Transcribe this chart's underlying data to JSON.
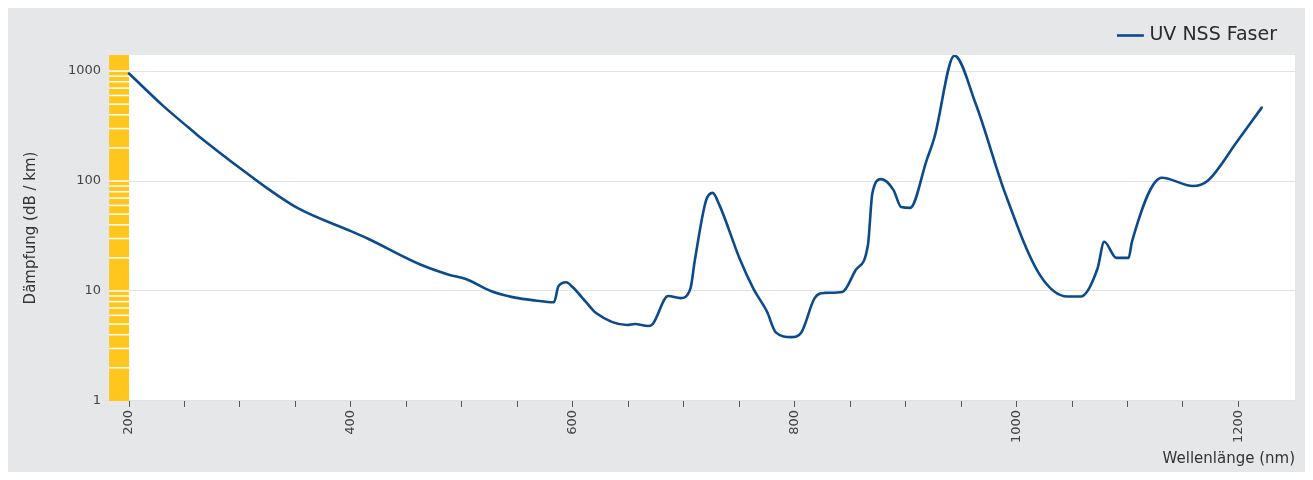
{
  "chart_data": {
    "type": "line",
    "xlabel": "Wellenlänge (nm)",
    "ylabel": "Dämpfung (dB / km)",
    "series": [
      {
        "name": "UV NSS Faser",
        "color": "#0b4a8b",
        "x": [
          200,
          231,
          253,
          262,
          305,
          326,
          353,
          400,
          415,
          462,
          489,
          503,
          526,
          548,
          566,
          583,
          587,
          594,
          600,
          612,
          621,
          649,
          656,
          668,
          672,
          686,
          697,
          706,
          710,
          720,
          726,
          732,
          751,
          763,
          775,
          783,
          797,
          806,
          818,
          827,
          843,
          855,
          866,
          870,
          878,
          889,
          896,
          904,
          919,
          926,
          944,
          963,
          990,
          1021,
          1046,
          1058,
          1073,
          1079,
          1090,
          1101,
          1104,
          1131,
          1159,
          1172,
          1199,
          1221
        ],
        "values": [
          950,
          480,
          310,
          260,
          120,
          84,
          56,
          35,
          30,
          17.5,
          14,
          12.9,
          10,
          8.7,
          8.2,
          7.9,
          11,
          12,
          10.8,
          7.9,
          6.3,
          4.9,
          5,
          4.8,
          5,
          9,
          8.6,
          10.5,
          19,
          66,
          78,
          61,
          19,
          10.4,
          6.5,
          4.2,
          3.8,
          4.2,
          8.6,
          9.6,
          9.8,
          15.5,
          26,
          77,
          104,
          83,
          58,
          57,
          155,
          250,
          1380,
          510,
          76,
          14,
          8.9,
          8.9,
          16,
          28,
          20,
          20,
          28,
          107,
          90,
          100,
          230,
          465
        ]
      }
    ],
    "xlim": [
      182,
      1251
    ],
    "xticks": [
      200,
      {
        "value": 250,
        "label": null
      },
      {
        "value": 300,
        "label": null
      },
      {
        "value": 350,
        "label": null
      },
      400,
      {
        "value": 450,
        "label": null
      },
      {
        "value": 500,
        "label": null
      },
      {
        "value": 550,
        "label": null
      },
      600,
      {
        "value": 650,
        "label": null
      },
      {
        "value": 700,
        "label": null
      },
      {
        "value": 750,
        "label": null
      },
      800,
      {
        "value": 850,
        "label": null
      },
      {
        "value": 900,
        "label": null
      },
      {
        "value": 950,
        "label": null
      },
      1000,
      {
        "value": 1050,
        "label": null
      },
      {
        "value": 1100,
        "label": null
      },
      {
        "value": 1150,
        "label": null
      },
      1200
    ],
    "ylim": [
      1,
      1400
    ],
    "yticks": [
      1,
      10,
      100,
      1000
    ],
    "log": "y",
    "grid": "y",
    "legend": "top right",
    "marker": "none",
    "line_style": "solid",
    "bands": [
      {
        "axis": "x",
        "from": 182,
        "to": 200,
        "color": "#ffc61e"
      }
    ]
  }
}
